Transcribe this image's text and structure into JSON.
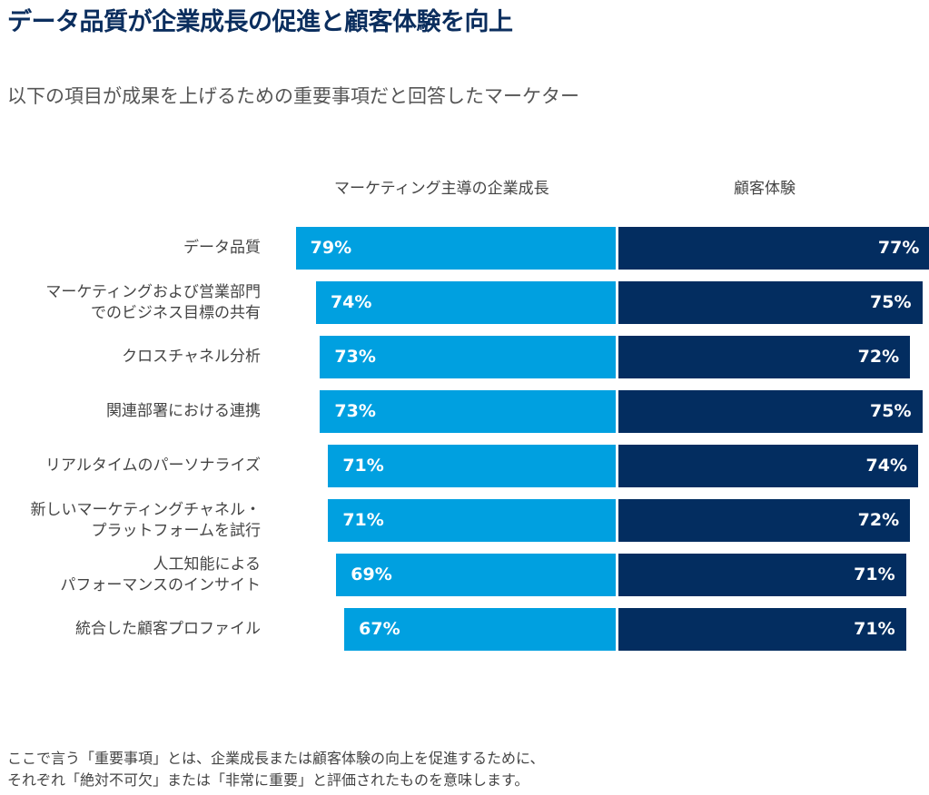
{
  "title": "データ品質が企業成長の促進と顧客体験を向上",
  "subtitle": "以下の項目が成果を上げるための重要事項だと回答したマーケター",
  "note": [
    "ここで言う「重要事項」とは、企業成長または顧客体験の向上を促進するために、",
    "それぞれ「絶対不可欠」または「非常に重要」と評価されたものを意味します。"
  ],
  "chart_data": {
    "type": "bar",
    "orientation": "horizontal-diverging",
    "categories": [
      [
        "データ品質"
      ],
      [
        "マーケティングおよび営業部門",
        "でのビジネス目標の共有"
      ],
      [
        "クロスチャネル分析"
      ],
      [
        "関連部署における連携"
      ],
      [
        "リアルタイムのパーソナライズ"
      ],
      [
        "新しいマーケティングチャネル・",
        "プラットフォームを試行"
      ],
      [
        "人工知能による",
        "パフォーマンスのインサイト"
      ],
      [
        "統合した顧客プロファイル"
      ]
    ],
    "series": [
      {
        "name": "マーケティング主導の企業成長",
        "color": "#00a0e0",
        "values": [
          79,
          74,
          73,
          73,
          71,
          71,
          69,
          67
        ]
      },
      {
        "name": "顧客体験",
        "color": "#032d60",
        "values": [
          77,
          75,
          72,
          75,
          74,
          72,
          71,
          71
        ]
      }
    ],
    "unit": "%"
  }
}
